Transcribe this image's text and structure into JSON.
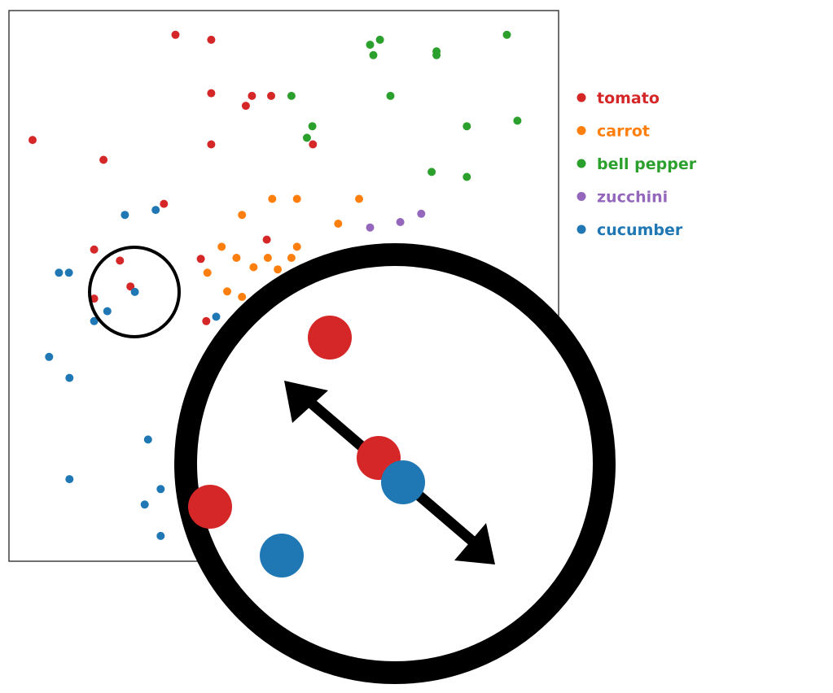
{
  "chart_data": {
    "type": "scatter",
    "title": "",
    "xlabel": "",
    "ylabel": "",
    "xlim": [
      0,
      100
    ],
    "ylim": [
      0,
      100
    ],
    "grid": false,
    "legend_position": "right",
    "series": [
      {
        "name": "tomato",
        "color": "#d62728",
        "points": [
          [
            30.3,
            95.6
          ],
          [
            36.8,
            94.7
          ],
          [
            36.8,
            85.0
          ],
          [
            44.2,
            84.5
          ],
          [
            43.1,
            82.7
          ],
          [
            47.7,
            84.5
          ],
          [
            4.3,
            76.5
          ],
          [
            36.8,
            75.7
          ],
          [
            55.3,
            75.7
          ],
          [
            17.2,
            72.9
          ],
          [
            28.2,
            64.9
          ],
          [
            15.5,
            56.6
          ],
          [
            20.2,
            54.6
          ],
          [
            46.9,
            58.4
          ],
          [
            34.9,
            54.9
          ],
          [
            22.1,
            49.9
          ],
          [
            15.5,
            47.7
          ],
          [
            35.9,
            43.6
          ]
        ]
      },
      {
        "name": "carrot",
        "color": "#ff7f0e",
        "points": [
          [
            47.9,
            65.8
          ],
          [
            52.4,
            65.8
          ],
          [
            63.7,
            65.8
          ],
          [
            42.4,
            62.9
          ],
          [
            59.9,
            61.3
          ],
          [
            38.7,
            57.1
          ],
          [
            52.4,
            57.1
          ],
          [
            41.4,
            55.1
          ],
          [
            47.1,
            55.1
          ],
          [
            51.4,
            55.1
          ],
          [
            44.5,
            53.4
          ],
          [
            48.9,
            53.0
          ],
          [
            36.1,
            52.4
          ],
          [
            39.7,
            49.0
          ],
          [
            42.4,
            48.0
          ]
        ]
      },
      {
        "name": "bell pepper",
        "color": "#2ca02c",
        "points": [
          [
            90.6,
            95.6
          ],
          [
            67.5,
            94.7
          ],
          [
            65.7,
            93.8
          ],
          [
            77.8,
            92.6
          ],
          [
            77.8,
            91.9
          ],
          [
            66.3,
            91.9
          ],
          [
            69.4,
            84.5
          ],
          [
            51.4,
            84.5
          ],
          [
            92.5,
            80.0
          ],
          [
            55.2,
            79.0
          ],
          [
            83.3,
            79.0
          ],
          [
            54.2,
            76.9
          ],
          [
            76.9,
            70.7
          ],
          [
            83.3,
            69.8
          ]
        ]
      },
      {
        "name": "zucchini",
        "color": "#9467bd",
        "points": [
          [
            75.0,
            63.1
          ],
          [
            71.2,
            61.6
          ],
          [
            65.7,
            60.6
          ]
        ]
      },
      {
        "name": "cucumber",
        "color": "#1f77b4",
        "points": [
          [
            26.7,
            63.8
          ],
          [
            21.1,
            62.9
          ],
          [
            9.1,
            52.4
          ],
          [
            10.9,
            52.4
          ],
          [
            22.9,
            48.9
          ],
          [
            17.9,
            45.4
          ],
          [
            15.5,
            43.6
          ],
          [
            37.7,
            44.4
          ],
          [
            7.3,
            37.1
          ],
          [
            11.0,
            33.3
          ],
          [
            25.3,
            22.1
          ],
          [
            11.0,
            14.9
          ],
          [
            27.6,
            13.1
          ],
          [
            24.7,
            10.3
          ],
          [
            27.6,
            4.6
          ]
        ]
      }
    ]
  }
}
